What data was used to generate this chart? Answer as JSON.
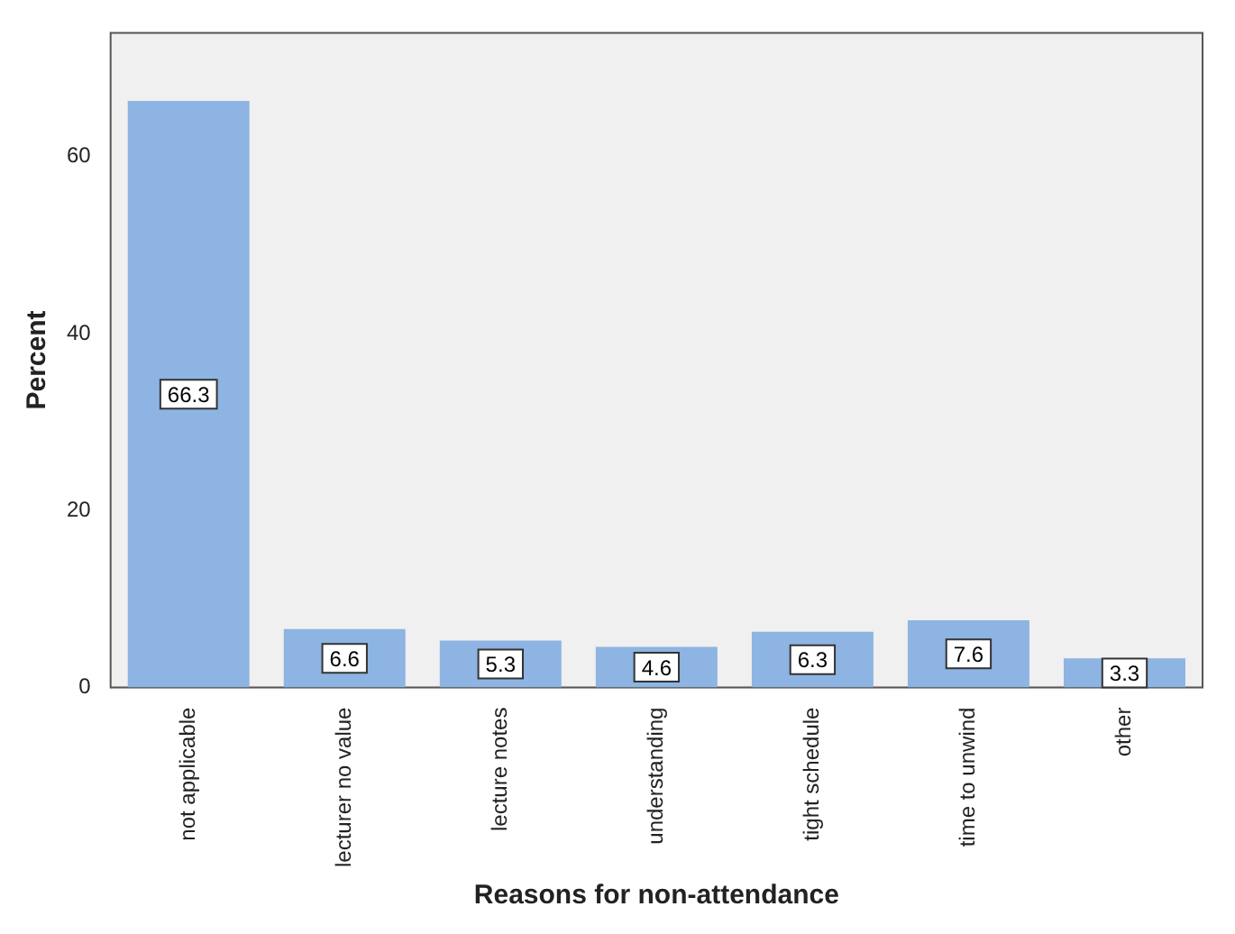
{
  "chart_data": {
    "type": "bar",
    "xlabel": "Reasons for non-attendance",
    "ylabel": "Percent",
    "categories": [
      "not applicable",
      "lecturer no value",
      "lecture notes",
      "understanding",
      "tight schedule",
      "time to unwind",
      "other"
    ],
    "values": [
      66.3,
      6.6,
      5.3,
      4.6,
      6.3,
      7.6,
      3.3
    ],
    "color": "#8db4e2",
    "ylim": [
      0,
      74
    ],
    "yticks": [
      0,
      20,
      40,
      60
    ],
    "grid": false,
    "legend": false,
    "data_labels": true
  }
}
